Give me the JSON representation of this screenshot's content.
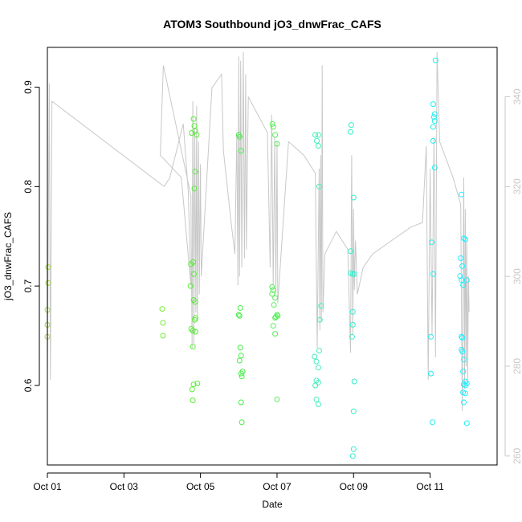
{
  "chart_data": {
    "type": "scatter",
    "title": "ATOM3 Southbound jO3_dnwFrac_CAFS",
    "xlabel": "Date",
    "ylabel": "jO3_dnwFrac_CAFS",
    "xlim": [
      0.0,
      11.75
    ],
    "ylim": [
      0.52,
      0.94
    ],
    "y2lim": [
      258,
      351
    ],
    "x_ticks": [
      {
        "value": 0,
        "label": "Oct 01"
      },
      {
        "value": 2,
        "label": "Oct 03"
      },
      {
        "value": 4,
        "label": "Oct 05"
      },
      {
        "value": 6,
        "label": "Oct 07"
      },
      {
        "value": 8,
        "label": "Oct 09"
      },
      {
        "value": 10,
        "label": "Oct 11"
      }
    ],
    "y_ticks": [
      {
        "value": 0.6,
        "label": "0.6"
      },
      {
        "value": 0.7,
        "label": "0.7"
      },
      {
        "value": 0.8,
        "label": "0.8"
      },
      {
        "value": 0.9,
        "label": "0.9"
      }
    ],
    "y2_ticks": [
      {
        "value": 260,
        "label": "260"
      },
      {
        "value": 280,
        "label": "280"
      },
      {
        "value": 300,
        "label": "300"
      },
      {
        "value": 320,
        "label": "320"
      },
      {
        "value": 340,
        "label": "340"
      }
    ],
    "colors": {
      "points_green": "#33ee33",
      "points_lightgreen": "#99dd44",
      "points_cyan": "#33eedd",
      "points_aqua": "#22eeff",
      "line": "#c8c8c8",
      "frame": "#000000"
    },
    "series": [
      {
        "color": "#a4d84a",
        "points": [
          [
            0.02,
            0.719
          ],
          [
            0.02,
            0.703
          ],
          [
            0.0,
            0.676
          ],
          [
            0.0,
            0.661
          ],
          [
            0.0,
            0.649
          ]
        ]
      },
      {
        "color": "#77ee33",
        "points": [
          [
            3.0,
            0.677
          ],
          [
            3.02,
            0.663
          ],
          [
            3.02,
            0.65
          ]
        ]
      },
      {
        "color": "#55ee33",
        "points": [
          [
            3.77,
            0.854
          ],
          [
            3.82,
            0.868
          ],
          [
            3.84,
            0.861
          ],
          [
            3.86,
            0.856
          ],
          [
            3.9,
            0.852
          ],
          [
            3.86,
            0.815
          ],
          [
            3.84,
            0.798
          ],
          [
            3.75,
            0.722
          ],
          [
            3.81,
            0.724
          ],
          [
            3.83,
            0.712
          ],
          [
            3.74,
            0.7
          ],
          [
            3.82,
            0.686
          ],
          [
            3.86,
            0.684
          ],
          [
            3.87,
            0.668
          ],
          [
            3.85,
            0.666
          ],
          [
            3.76,
            0.657
          ],
          [
            3.8,
            0.655
          ],
          [
            3.87,
            0.654
          ],
          [
            3.8,
            0.639
          ],
          [
            3.92,
            0.602
          ],
          [
            3.82,
            0.601
          ],
          [
            3.78,
            0.596
          ],
          [
            3.8,
            0.585
          ]
        ]
      },
      {
        "color": "#44ee44",
        "points": [
          [
            5.0,
            0.852
          ],
          [
            5.02,
            0.85
          ],
          [
            5.06,
            0.836
          ],
          [
            5.04,
            0.678
          ],
          [
            5.0,
            0.671
          ],
          [
            5.02,
            0.67
          ],
          [
            5.04,
            0.638
          ],
          [
            5.06,
            0.63
          ],
          [
            5.02,
            0.625
          ],
          [
            5.1,
            0.614
          ],
          [
            5.06,
            0.612
          ],
          [
            5.08,
            0.609
          ],
          [
            5.06,
            0.583
          ],
          [
            5.08,
            0.563
          ]
        ]
      },
      {
        "color": "#55ee55",
        "points": [
          [
            5.88,
            0.863
          ],
          [
            5.9,
            0.86
          ],
          [
            5.95,
            0.852
          ],
          [
            6.0,
            0.843
          ],
          [
            5.87,
            0.699
          ],
          [
            5.9,
            0.696
          ],
          [
            5.87,
            0.692
          ],
          [
            5.95,
            0.688
          ],
          [
            5.92,
            0.681
          ],
          [
            6.0,
            0.671
          ],
          [
            6.02,
            0.67
          ],
          [
            5.97,
            0.669
          ],
          [
            5.95,
            0.668
          ],
          [
            5.9,
            0.66
          ],
          [
            5.95,
            0.652
          ],
          [
            6.0,
            0.586
          ]
        ]
      },
      {
        "color": "#44eebb",
        "points": [
          [
            7.0,
            0.852
          ],
          [
            7.08,
            0.852
          ],
          [
            7.04,
            0.846
          ],
          [
            7.08,
            0.841
          ],
          [
            7.1,
            0.8
          ],
          [
            7.15,
            0.68
          ],
          [
            7.12,
            0.666
          ],
          [
            7.1,
            0.635
          ],
          [
            6.98,
            0.629
          ],
          [
            7.03,
            0.624
          ],
          [
            7.08,
            0.618
          ],
          [
            7.03,
            0.605
          ],
          [
            7.08,
            0.603
          ],
          [
            7.0,
            0.6
          ],
          [
            7.03,
            0.586
          ],
          [
            7.08,
            0.581
          ]
        ]
      },
      {
        "color": "#33eecc",
        "points": [
          [
            7.94,
            0.862
          ],
          [
            7.92,
            0.855
          ],
          [
            8.0,
            0.789
          ],
          [
            7.92,
            0.735
          ],
          [
            7.92,
            0.713
          ],
          [
            7.98,
            0.712
          ],
          [
            8.02,
            0.712
          ],
          [
            7.98,
            0.674
          ],
          [
            7.98,
            0.661
          ],
          [
            7.96,
            0.649
          ],
          [
            8.02,
            0.604
          ],
          [
            8.0,
            0.574
          ],
          [
            8.0,
            0.536
          ],
          [
            7.98,
            0.529
          ]
        ]
      },
      {
        "color": "#22eeee",
        "points": [
          [
            10.14,
            0.927
          ],
          [
            10.08,
            0.883
          ],
          [
            10.12,
            0.873
          ],
          [
            10.1,
            0.87
          ],
          [
            10.12,
            0.866
          ],
          [
            10.08,
            0.86
          ],
          [
            10.08,
            0.846
          ],
          [
            10.12,
            0.819
          ],
          [
            10.04,
            0.744
          ],
          [
            10.08,
            0.712
          ],
          [
            10.02,
            0.649
          ],
          [
            10.02,
            0.612
          ],
          [
            10.06,
            0.563
          ]
        ]
      },
      {
        "color": "#22eeff",
        "points": [
          [
            10.82,
            0.792
          ],
          [
            10.88,
            0.748
          ],
          [
            10.92,
            0.747
          ],
          [
            10.8,
            0.728
          ],
          [
            10.84,
            0.72
          ],
          [
            10.78,
            0.71
          ],
          [
            10.82,
            0.706
          ],
          [
            10.96,
            0.706
          ],
          [
            10.86,
            0.701
          ],
          [
            10.82,
            0.649
          ],
          [
            10.84,
            0.648
          ],
          [
            10.82,
            0.636
          ],
          [
            10.84,
            0.634
          ],
          [
            10.88,
            0.626
          ],
          [
            10.86,
            0.614
          ],
          [
            10.92,
            0.604
          ],
          [
            10.88,
            0.601
          ],
          [
            10.92,
            0.6
          ],
          [
            10.96,
            0.602
          ],
          [
            10.86,
            0.593
          ],
          [
            10.92,
            0.592
          ],
          [
            10.88,
            0.583
          ],
          [
            10.96,
            0.562
          ]
        ]
      }
    ],
    "line_series": {
      "axis": "right",
      "color": "#c8c8c8",
      "points": [
        [
          0.0,
          279
        ],
        [
          0.05,
          343
        ],
        [
          0.08,
          277
        ],
        [
          0.12,
          339
        ],
        [
          3.05,
          320
        ],
        [
          3.2,
          322
        ],
        [
          3.55,
          334
        ],
        [
          3.68,
          319
        ],
        [
          3.75,
          298
        ],
        [
          3.5,
          322
        ],
        [
          2.95,
          327
        ],
        [
          3.03,
          347
        ],
        [
          3.75,
          318
        ],
        [
          3.78,
          284
        ],
        [
          3.8,
          339
        ],
        [
          3.83,
          285
        ],
        [
          3.85,
          333
        ],
        [
          3.88,
          292
        ],
        [
          3.9,
          338
        ],
        [
          3.92,
          290
        ],
        [
          3.95,
          330
        ],
        [
          3.97,
          296
        ],
        [
          4.0,
          325
        ],
        [
          4.02,
          300
        ],
        [
          4.3,
          342
        ],
        [
          4.55,
          345
        ],
        [
          4.6,
          328
        ],
        [
          4.8,
          312
        ],
        [
          4.9,
          305
        ],
        [
          4.95,
          332
        ],
        [
          4.98,
          298
        ],
        [
          5.0,
          349
        ],
        [
          5.02,
          300
        ],
        [
          5.05,
          348
        ],
        [
          5.08,
          302
        ],
        [
          5.12,
          350
        ],
        [
          5.15,
          304
        ],
        [
          5.18,
          345
        ],
        [
          5.2,
          306
        ],
        [
          5.25,
          340
        ],
        [
          5.5,
          336
        ],
        [
          5.75,
          332
        ],
        [
          5.82,
          302
        ],
        [
          5.86,
          336
        ],
        [
          5.9,
          298
        ],
        [
          5.94,
          331
        ],
        [
          5.97,
          296
        ],
        [
          6.0,
          330
        ],
        [
          6.02,
          294
        ],
        [
          6.3,
          330
        ],
        [
          6.7,
          327
        ],
        [
          7.0,
          323
        ],
        [
          7.05,
          284
        ],
        [
          7.1,
          324
        ],
        [
          7.12,
          288
        ],
        [
          7.14,
          327
        ],
        [
          7.16,
          290
        ],
        [
          7.18,
          347
        ],
        [
          7.2,
          292
        ],
        [
          7.25,
          305
        ],
        [
          7.55,
          310
        ],
        [
          7.85,
          306
        ],
        [
          7.92,
          283
        ],
        [
          7.95,
          327
        ],
        [
          7.98,
          287
        ],
        [
          8.0,
          315
        ],
        [
          8.02,
          297
        ],
        [
          8.05,
          308
        ],
        [
          8.1,
          296
        ],
        [
          8.25,
          302
        ],
        [
          8.5,
          305
        ],
        [
          9.0,
          308
        ],
        [
          9.5,
          311
        ],
        [
          9.8,
          312
        ],
        [
          9.9,
          329
        ],
        [
          9.95,
          277
        ],
        [
          10.0,
          324
        ],
        [
          10.05,
          287
        ],
        [
          10.1,
          331
        ],
        [
          10.14,
          282
        ],
        [
          10.18,
          350
        ],
        [
          10.25,
          330
        ],
        [
          10.6,
          322
        ],
        [
          10.8,
          316
        ],
        [
          10.84,
          270
        ],
        [
          10.88,
          322
        ],
        [
          10.9,
          275
        ],
        [
          10.92,
          315
        ],
        [
          10.94,
          280
        ],
        [
          10.96,
          308
        ],
        [
          10.98,
          276
        ],
        [
          11.0,
          300
        ],
        [
          11.02,
          292
        ]
      ]
    }
  }
}
